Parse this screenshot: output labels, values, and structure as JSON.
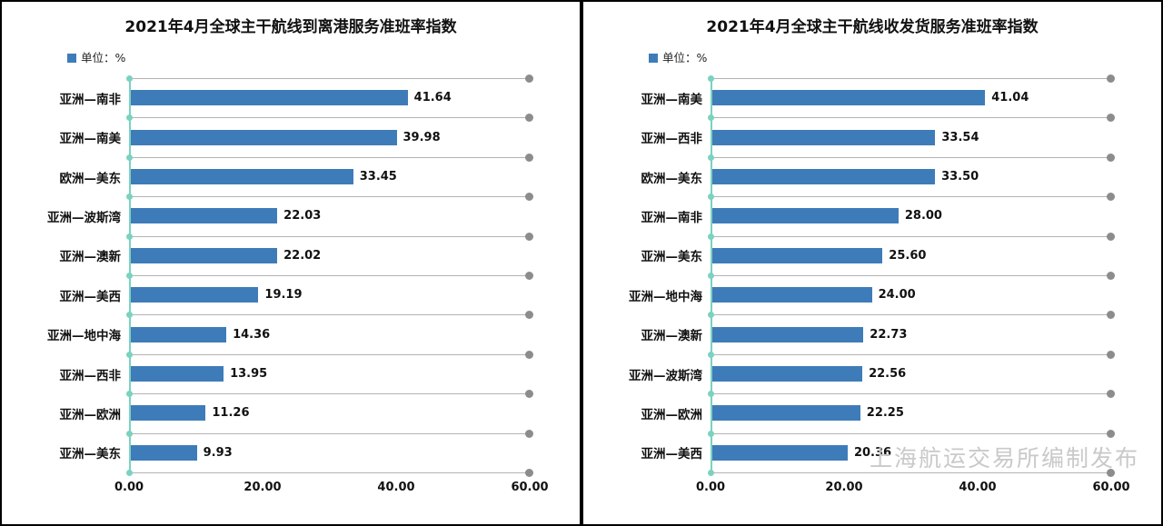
{
  "colors": {
    "bar": "#3e7cb9",
    "axis": "#7bd2c0",
    "gridline": "#b3b3b3",
    "gridline_dot": "#8c8c8c",
    "watermark": "#c9c9c9"
  },
  "watermark": "上海航运交易所编制发布",
  "chart_data": [
    {
      "type": "bar",
      "orientation": "horizontal",
      "title": "2021年4月全球主干航线到离港服务准班率指数",
      "legend": "单位：%",
      "categories": [
        "亚洲—南非",
        "亚洲—南美",
        "欧洲—美东",
        "亚洲—波斯湾",
        "亚洲—澳新",
        "亚洲—美西",
        "亚洲—地中海",
        "亚洲—西非",
        "亚洲—欧洲",
        "亚洲—美东"
      ],
      "values": [
        41.64,
        39.98,
        33.45,
        22.03,
        22.02,
        19.19,
        14.36,
        13.95,
        11.26,
        9.93
      ],
      "value_labels": [
        "41.64",
        "39.98",
        "33.45",
        "22.03",
        "22.02",
        "19.19",
        "14.36",
        "13.95",
        "11.26",
        "9.93"
      ],
      "x_ticks": [
        "0.00",
        "20.00",
        "40.00",
        "60.00"
      ],
      "xlim": [
        0,
        60
      ],
      "grid": true,
      "legend_position": "top-left"
    },
    {
      "type": "bar",
      "orientation": "horizontal",
      "title": "2021年4月全球主干航线收发货服务准班率指数",
      "legend": "单位：%",
      "categories": [
        "亚洲—南美",
        "亚洲—西非",
        "欧洲—美东",
        "亚洲—南非",
        "亚洲—美东",
        "亚洲—地中海",
        "亚洲—澳新",
        "亚洲—波斯湾",
        "亚洲—欧洲",
        "亚洲—美西"
      ],
      "values": [
        41.04,
        33.54,
        33.5,
        28.0,
        25.6,
        24.0,
        22.73,
        22.56,
        22.25,
        20.36
      ],
      "value_labels": [
        "41.04",
        "33.54",
        "33.50",
        "28.00",
        "25.60",
        "24.00",
        "22.73",
        "22.56",
        "22.25",
        "20.36"
      ],
      "x_ticks": [
        "0.00",
        "20.00",
        "40.00",
        "60.00"
      ],
      "xlim": [
        0,
        60
      ],
      "grid": true,
      "legend_position": "top-left"
    }
  ]
}
